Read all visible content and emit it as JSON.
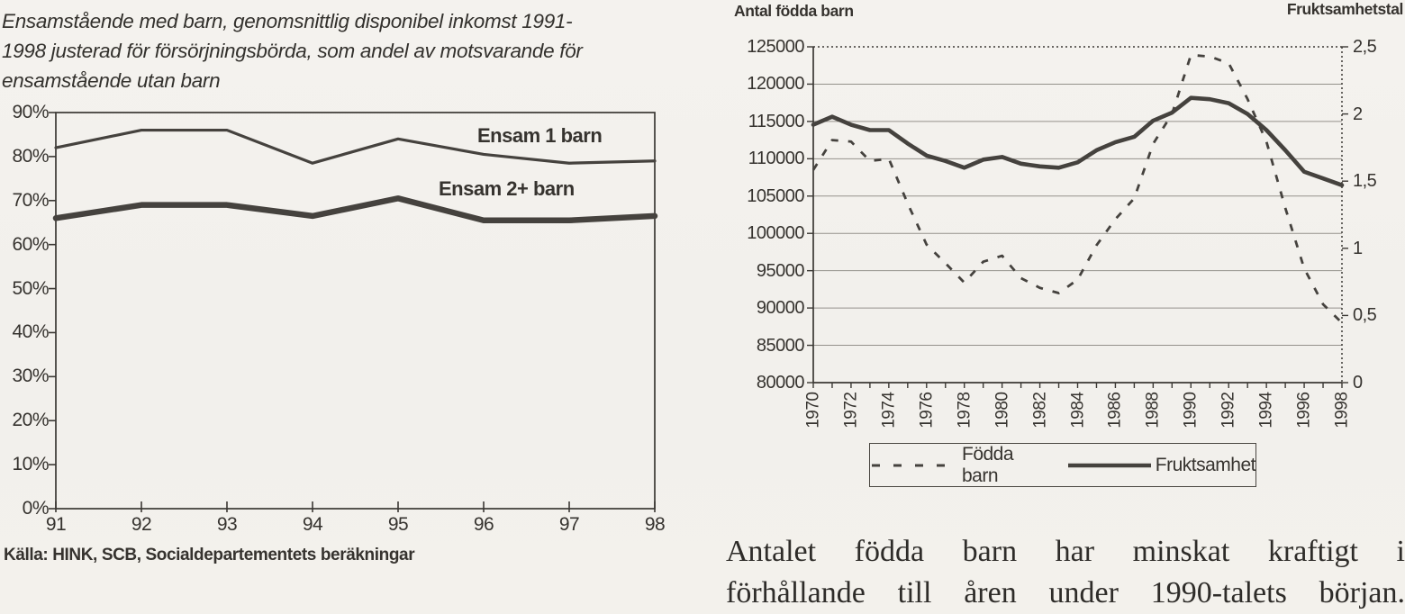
{
  "page": {
    "paper_color": "#f3f1ed",
    "ink_color": "#3b3834",
    "grid_color": "#94918b"
  },
  "body_text": {
    "line1": "Antalet födda barn har minskat kraftigt i",
    "line2": "förhållande till åren under 1990-talets början."
  },
  "chart_data": [
    {
      "type": "line",
      "title": "Ensamstående med barn, genomsnittlig disponibel inkomst 1991-1998 justerad för försörjningsbörda, som andel av motsvarande för ensamstående utan barn",
      "title_lines": [
        "Ensamstående med barn, genomsnittlig disponibel inkomst 1991-",
        "1998 justerad för försörjningsbörda, som andel av motsvarande för",
        "ensamstående utan barn"
      ],
      "source": "Källa: HINK, SCB, Socialdepartementets beräkningar",
      "x_tick_labels": [
        "91",
        "92",
        "93",
        "94",
        "95",
        "96",
        "97",
        "98"
      ],
      "y_tick_labels": [
        "90%",
        "80%",
        "70%",
        "60%",
        "50%",
        "40%",
        "30%",
        "20%",
        "10%",
        "0%"
      ],
      "ylim": [
        0,
        90
      ],
      "unit": "%",
      "grid": false,
      "legend_position": "inline-labels",
      "series": [
        {
          "name": "Ensam 1 barn",
          "style": "thin",
          "values": [
            82,
            86,
            86,
            78.5,
            84,
            80.5,
            78.5,
            79
          ]
        },
        {
          "name": "Ensam 2+ barn",
          "style": "thick",
          "values": [
            66,
            69,
            69,
            66.5,
            70.5,
            65.5,
            65.5,
            66.5
          ]
        }
      ]
    },
    {
      "type": "line",
      "title": "",
      "x": [
        1970,
        1971,
        1972,
        1973,
        1974,
        1975,
        1976,
        1977,
        1978,
        1979,
        1980,
        1981,
        1982,
        1983,
        1984,
        1985,
        1986,
        1987,
        1988,
        1989,
        1990,
        1991,
        1992,
        1993,
        1994,
        1995,
        1996,
        1997,
        1998
      ],
      "x_tick_labels": [
        "1970",
        "1972",
        "1974",
        "1976",
        "1978",
        "1980",
        "1982",
        "1984",
        "1986",
        "1988",
        "1990",
        "1992",
        "1994",
        "1996",
        "1998"
      ],
      "left_axis": {
        "title": "Antal födda barn",
        "range": [
          80000,
          125000
        ],
        "tick_step": 5000,
        "tick_labels": [
          "125000",
          "120000",
          "115000",
          "110000",
          "105000",
          "100000",
          "95000",
          "90000",
          "85000",
          "80000"
        ]
      },
      "right_axis": {
        "title": "Fruktsamhetstal",
        "range": [
          0,
          2.5
        ],
        "tick_step": 0.5,
        "tick_labels": [
          "2,5",
          "2",
          "1,5",
          "1",
          "0,5",
          "0"
        ]
      },
      "grid": true,
      "legend_position": "bottom",
      "series": [
        {
          "name": "Födda barn",
          "axis": "left",
          "line": "dashed",
          "values": [
            108500,
            112500,
            112300,
            109700,
            110000,
            104000,
            98500,
            96000,
            93400,
            96200,
            97000,
            94000,
            92700,
            92000,
            93800,
            98400,
            101900,
            104700,
            112000,
            116000,
            123900,
            123700,
            122800,
            118000,
            112300,
            103400,
            95300,
            90500,
            88000
          ]
        },
        {
          "name": "Fruktsamhet",
          "axis": "right",
          "line": "solid",
          "values": [
            1.92,
            1.98,
            1.92,
            1.88,
            1.88,
            1.78,
            1.69,
            1.65,
            1.6,
            1.66,
            1.68,
            1.63,
            1.61,
            1.6,
            1.64,
            1.73,
            1.79,
            1.83,
            1.95,
            2.01,
            2.12,
            2.11,
            2.08,
            2.0,
            1.88,
            1.73,
            1.57,
            1.52,
            1.47
          ]
        }
      ]
    }
  ]
}
